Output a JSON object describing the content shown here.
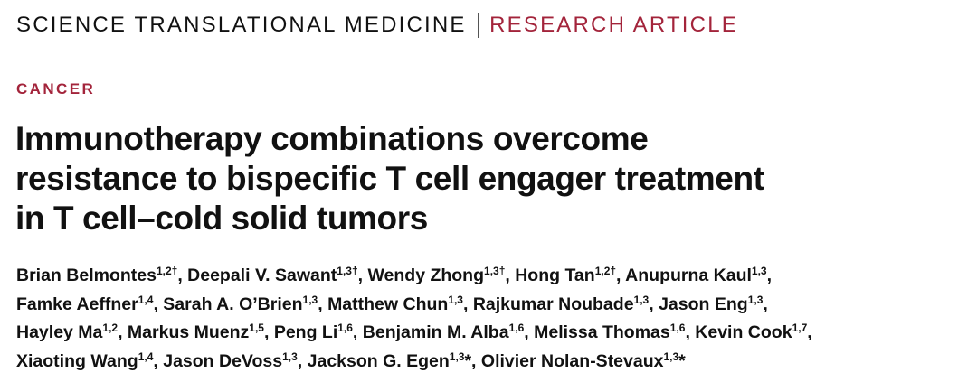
{
  "header": {
    "journal": "SCIENCE TRANSLATIONAL MEDICINE",
    "section": "RESEARCH ARTICLE"
  },
  "category": "CANCER",
  "title_lines": [
    "Immunotherapy combinations overcome",
    "resistance to bispecific T cell engager treatment",
    "in T cell–cold solid tumors"
  ],
  "author_lines": [
    [
      {
        "name": "Brian Belmontes",
        "affiliations": "1,2†",
        "separator": ","
      },
      {
        "name": "Deepali V. Sawant",
        "affiliations": "1,3†",
        "separator": ","
      },
      {
        "name": "Wendy Zhong",
        "affiliations": "1,3†",
        "separator": ","
      },
      {
        "name": "Hong Tan",
        "affiliations": "1,2†",
        "separator": ","
      },
      {
        "name": "Anupurna Kaul",
        "affiliations": "1,3",
        "separator": ","
      }
    ],
    [
      {
        "name": "Famke Aeffner",
        "affiliations": "1,4",
        "separator": ","
      },
      {
        "name": "Sarah A. O’Brien",
        "affiliations": "1,3",
        "separator": ","
      },
      {
        "name": "Matthew Chun",
        "affiliations": "1,3",
        "separator": ","
      },
      {
        "name": "Rajkumar Noubade",
        "affiliations": "1,3",
        "separator": ","
      },
      {
        "name": "Jason Eng",
        "affiliations": "1,3",
        "separator": ","
      }
    ],
    [
      {
        "name": "Hayley Ma",
        "affiliations": "1,2",
        "separator": ","
      },
      {
        "name": "Markus Muenz",
        "affiliations": "1,5",
        "separator": ","
      },
      {
        "name": "Peng Li",
        "affiliations": "1,6",
        "separator": ","
      },
      {
        "name": "Benjamin M. Alba",
        "affiliations": "1,6",
        "separator": ","
      },
      {
        "name": "Melissa Thomas",
        "affiliations": "1,6",
        "separator": ","
      },
      {
        "name": "Kevin Cook",
        "affiliations": "1,7",
        "separator": ","
      }
    ],
    [
      {
        "name": "Xiaoting Wang",
        "affiliations": "1,4",
        "separator": ","
      },
      {
        "name": "Jason DeVoss",
        "affiliations": "1,3",
        "separator": ","
      },
      {
        "name": "Jackson G. Egen",
        "affiliations": "1,3",
        "separator": "*,"
      },
      {
        "name": "Olivier Nolan-Stevaux",
        "affiliations": "1,3",
        "separator": "*"
      }
    ]
  ]
}
